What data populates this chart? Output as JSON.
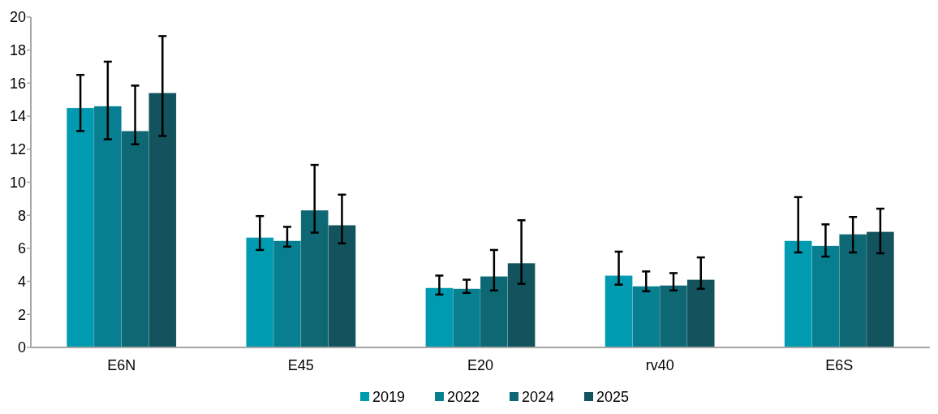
{
  "chart_data": {
    "type": "bar",
    "categories": [
      "E6N",
      "E45",
      "E20",
      "rv40",
      "E6S"
    ],
    "series": [
      {
        "name": "2019",
        "color": "#009bb0",
        "values": [
          14.5,
          6.65,
          3.6,
          4.35,
          6.45
        ],
        "errors": [
          [
            13.1,
            16.5
          ],
          [
            5.9,
            7.95
          ],
          [
            3.2,
            4.35
          ],
          [
            3.8,
            5.8
          ],
          [
            5.75,
            9.1
          ]
        ]
      },
      {
        "name": "2022",
        "color": "#077f91",
        "values": [
          14.6,
          6.45,
          3.55,
          3.7,
          6.15
        ],
        "errors": [
          [
            12.6,
            17.3
          ],
          [
            6.1,
            7.3
          ],
          [
            3.3,
            4.1
          ],
          [
            3.4,
            4.6
          ],
          [
            5.5,
            7.45
          ]
        ]
      },
      {
        "name": "2024",
        "color": "#0d6874",
        "values": [
          13.1,
          8.3,
          4.3,
          3.75,
          6.85
        ],
        "errors": [
          [
            12.3,
            15.85
          ],
          [
            6.95,
            11.05
          ],
          [
            3.45,
            5.9
          ],
          [
            3.45,
            4.5
          ],
          [
            5.75,
            7.9
          ]
        ]
      },
      {
        "name": "2025",
        "color": "#12535e",
        "values": [
          15.4,
          7.4,
          5.1,
          4.1,
          7.0
        ],
        "errors": [
          [
            12.8,
            18.85
          ],
          [
            6.3,
            9.25
          ],
          [
            3.85,
            7.7
          ],
          [
            3.55,
            5.45
          ],
          [
            5.7,
            8.4
          ]
        ]
      }
    ],
    "ylim": [
      0,
      20
    ],
    "yticks": [
      0,
      2,
      4,
      6,
      8,
      10,
      12,
      14,
      16,
      18,
      20
    ],
    "grid": false,
    "legend": "bottom"
  }
}
